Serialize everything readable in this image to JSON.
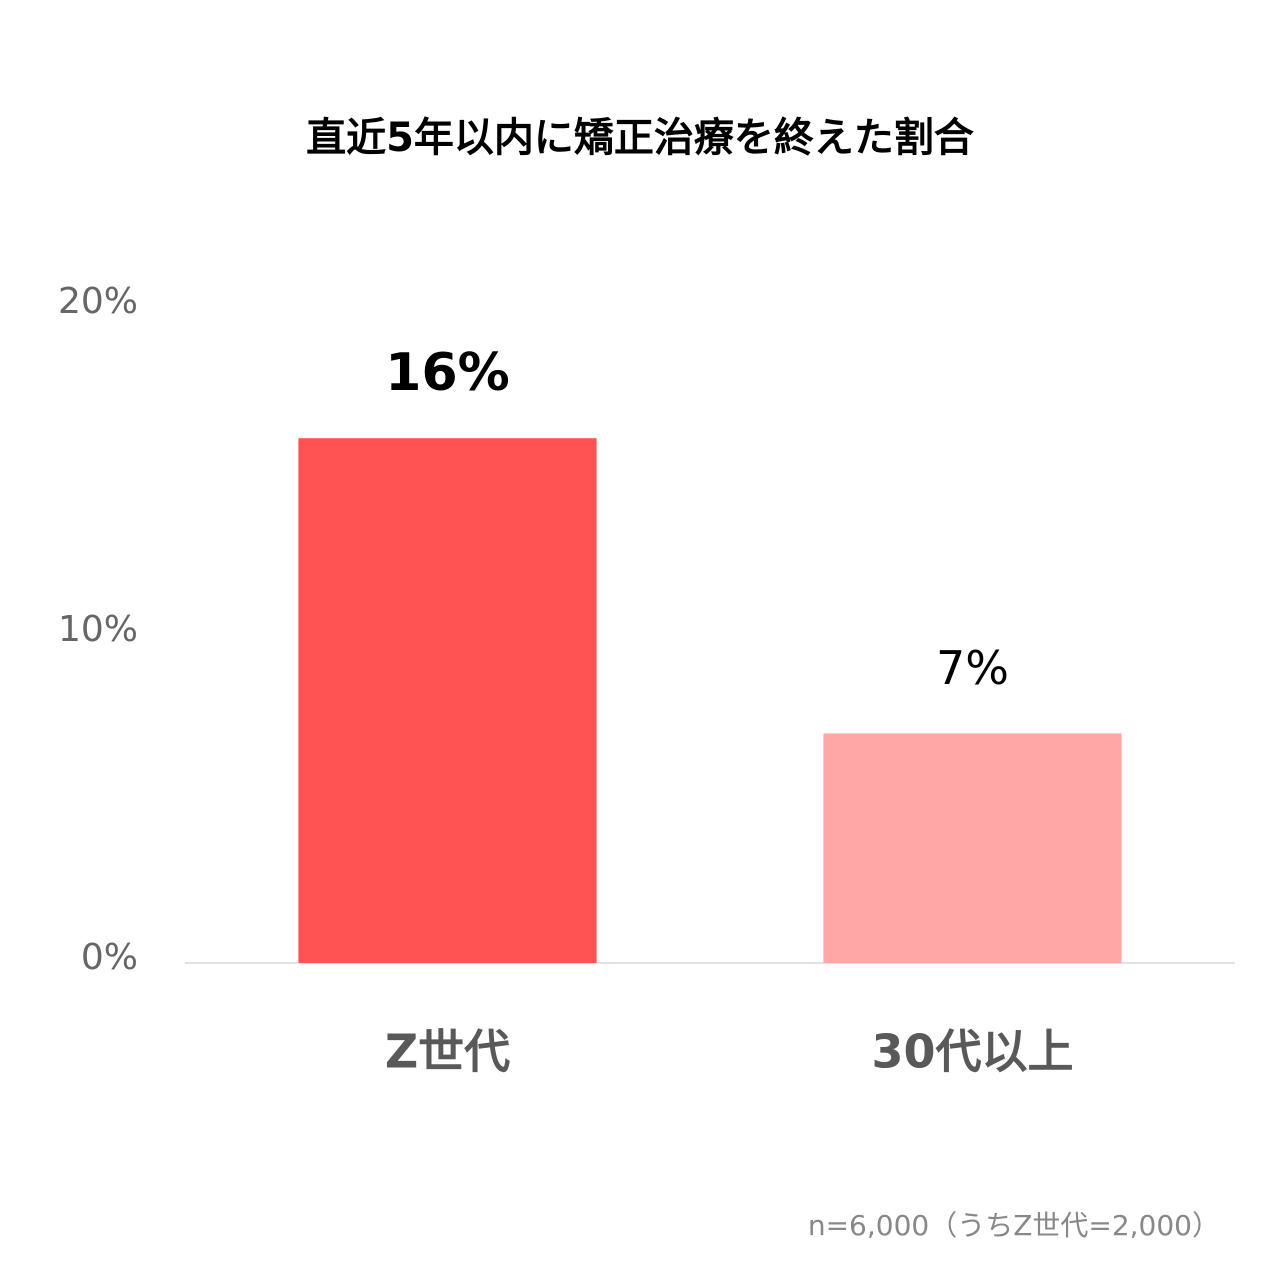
{
  "chart_data": {
    "type": "bar",
    "title": "直近5年以内に矯正治療を終えた割合",
    "categories": [
      "Z世代",
      "30代以上"
    ],
    "values": [
      16,
      7
    ],
    "value_labels": [
      "16%",
      "7%"
    ],
    "colors": [
      "#ff5252",
      "#ffa6a6"
    ],
    "ylim": [
      0,
      20
    ],
    "yticks": [
      {
        "value": 20,
        "label": "20%"
      },
      {
        "value": 10,
        "label": "10%"
      },
      {
        "value": 0,
        "label": "0%"
      }
    ],
    "grid": false,
    "note": "n=6,000（うちZ世代=2,000）"
  }
}
